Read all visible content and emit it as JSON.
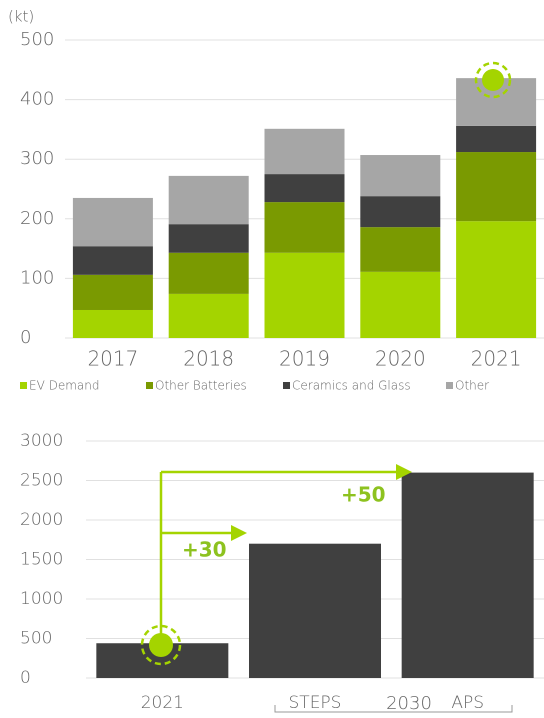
{
  "chart_data": [
    {
      "type": "stacked_bar",
      "y_label": "(kt)",
      "categories": [
        "2017",
        "2018",
        "2019",
        "2020",
        "2021"
      ],
      "series": [
        {
          "name": "EV Demand",
          "color": "#a4d400",
          "values": [
            47,
            74,
            143,
            111,
            196
          ]
        },
        {
          "name": "Other Batteries",
          "color": "#7a9a01",
          "values": [
            59,
            69,
            85,
            75,
            116
          ]
        },
        {
          "name": "Ceramics and Glass",
          "color": "#404040",
          "values": [
            48,
            48,
            47,
            52,
            44
          ]
        },
        {
          "name": "Other",
          "color": "#a6a6a6",
          "values": [
            81,
            81,
            76,
            69,
            80
          ]
        }
      ],
      "ylim": [
        0,
        500
      ],
      "yticks": [
        0,
        100,
        200,
        300,
        400,
        500
      ],
      "grid": true,
      "legend": "bottom"
    },
    {
      "type": "bar",
      "categories": [
        "2021",
        "STEPS",
        "APS"
      ],
      "group_label": "2030",
      "values": [
        440,
        1700,
        2600
      ],
      "color": "#404040",
      "ylim": [
        0,
        3000
      ],
      "yticks": [
        0,
        500,
        1000,
        1500,
        2000,
        2500,
        3000
      ],
      "grid": true,
      "annotations": [
        "+30",
        "+50"
      ]
    }
  ]
}
